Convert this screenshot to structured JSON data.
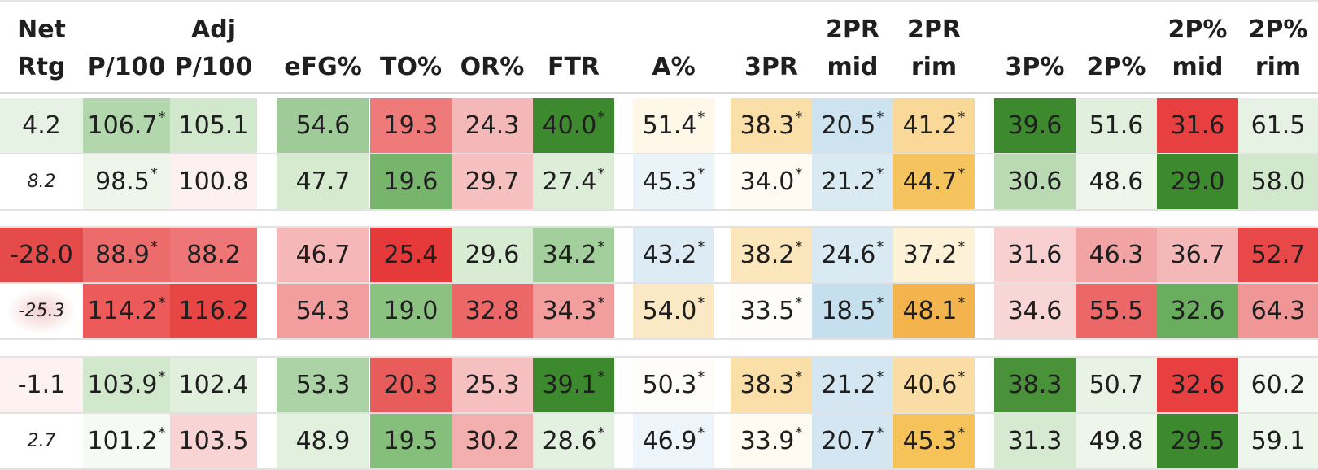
{
  "headers": [
    {
      "key": "net_rtg",
      "line1": "Net",
      "line2": "Rtg"
    },
    {
      "key": "p100",
      "line1": "",
      "line2": "P/100"
    },
    {
      "key": "adj_p100",
      "line1": "Adj",
      "line2": "P/100"
    },
    {
      "key": "efg",
      "line1": "",
      "line2": "eFG%"
    },
    {
      "key": "to",
      "line1": "",
      "line2": "TO%"
    },
    {
      "key": "or",
      "line1": "",
      "line2": "OR%"
    },
    {
      "key": "ftr",
      "line1": "",
      "line2": "FTR"
    },
    {
      "key": "a",
      "line1": "",
      "line2": "A%"
    },
    {
      "key": "3pr",
      "line1": "",
      "line2": "3PR"
    },
    {
      "key": "2pr_mid",
      "line1": "2PR",
      "line2": "mid"
    },
    {
      "key": "2pr_rim",
      "line1": "2PR",
      "line2": "rim"
    },
    {
      "key": "3p",
      "line1": "",
      "line2": "3P%"
    },
    {
      "key": "2p",
      "line1": "",
      "line2": "2P%"
    },
    {
      "key": "2p_mid",
      "line1": "2P%",
      "line2": "mid"
    },
    {
      "key": "2p_rim",
      "line1": "2P%",
      "line2": "rim"
    }
  ],
  "rows": [
    {
      "cells": [
        {
          "v": "4.2",
          "bg": "#e6f2e4"
        },
        {
          "v": "106.7",
          "star": "*",
          "bg": "#b3d7ad"
        },
        {
          "v": "105.1",
          "bg": "#d1e8cc"
        },
        {
          "v": "54.6",
          "bg": "#9ecb97"
        },
        {
          "v": "19.3",
          "bg": "#ee7b79"
        },
        {
          "v": "24.3",
          "bg": "#f5b8b8"
        },
        {
          "v": "40.0",
          "star": "*",
          "bg": "#3d8a2e"
        },
        {
          "v": "51.4",
          "star": "*",
          "bg": "#fff7e8"
        },
        {
          "v": "38.3",
          "star": "*",
          "bg": "#fbdfa9"
        },
        {
          "v": "20.5",
          "star": "*",
          "bg": "#cde3ef"
        },
        {
          "v": "41.2",
          "star": "*",
          "bg": "#f9d898"
        },
        {
          "v": "39.6",
          "bg": "#3d8a2e"
        },
        {
          "v": "51.6",
          "bg": "#e0f0dc"
        },
        {
          "v": "31.6",
          "bg": "#e84040"
        },
        {
          "v": "61.5",
          "bg": "#e6f2e4"
        }
      ]
    },
    {
      "cells": [
        {
          "v": "8.2",
          "small": true,
          "bg": "#ffffff"
        },
        {
          "v": "98.5",
          "star": "*",
          "bg": "#eef6ec"
        },
        {
          "v": "100.8",
          "bg": "#fdf0f0"
        },
        {
          "v": "47.7",
          "bg": "#d5eacf"
        },
        {
          "v": "19.6",
          "bg": "#77b46c"
        },
        {
          "v": "29.7",
          "bg": "#f6c0c0"
        },
        {
          "v": "27.4",
          "star": "*",
          "bg": "#dcedd8"
        },
        {
          "v": "45.3",
          "star": "*",
          "bg": "#e9f3f8"
        },
        {
          "v": "34.0",
          "star": "*",
          "bg": "#fffaf2"
        },
        {
          "v": "21.2",
          "star": "*",
          "bg": "#d9eaf3"
        },
        {
          "v": "44.7",
          "star": "*",
          "bg": "#f6c45e"
        },
        {
          "v": "30.6",
          "bg": "#b9daB3"
        },
        {
          "v": "48.6",
          "bg": "#eef6ec"
        },
        {
          "v": "29.0",
          "bg": "#3d8a2e"
        },
        {
          "v": "58.0",
          "bg": "#d1e8cc"
        }
      ]
    },
    {
      "cells": [
        {
          "v": "-28.0",
          "bg": "#e64b4b"
        },
        {
          "v": "88.9",
          "star": "*",
          "bg": "#ec6c6c"
        },
        {
          "v": "88.2",
          "bg": "#ee7676"
        },
        {
          "v": "46.7",
          "bg": "#f5b7b7"
        },
        {
          "v": "25.4",
          "bg": "#e63a3a"
        },
        {
          "v": "29.6",
          "bg": "#d8ecd3"
        },
        {
          "v": "34.2",
          "star": "*",
          "bg": "#a3cf9c"
        },
        {
          "v": "43.2",
          "star": "*",
          "bg": "#dcebf4"
        },
        {
          "v": "38.2",
          "star": "*",
          "bg": "#fce6bc"
        },
        {
          "v": "24.6",
          "star": "*",
          "bg": "#d9eaf3"
        },
        {
          "v": "37.2",
          "star": "*",
          "bg": "#fdf1d8"
        },
        {
          "v": "31.6",
          "bg": "#f8d0d0"
        },
        {
          "v": "46.3",
          "bg": "#f2a4a4"
        },
        {
          "v": "36.7",
          "bg": "#f5b8b8"
        },
        {
          "v": "52.7",
          "bg": "#e84848"
        }
      ]
    },
    {
      "cells": [
        {
          "v": "-25.3",
          "small": true,
          "bg": "glow"
        },
        {
          "v": "114.2",
          "star": "*",
          "bg": "#ec5a5a"
        },
        {
          "v": "116.2",
          "bg": "#e84545"
        },
        {
          "v": "54.3",
          "bg": "#f29e9e"
        },
        {
          "v": "19.0",
          "bg": "#8bc282"
        },
        {
          "v": "32.8",
          "bg": "#ec6868"
        },
        {
          "v": "34.3",
          "star": "*",
          "bg": "#f29e9e"
        },
        {
          "v": "54.0",
          "star": "*",
          "bg": "#fbe9c6"
        },
        {
          "v": "33.5",
          "star": "*",
          "bg": "#fffdf9"
        },
        {
          "v": "18.5",
          "star": "*",
          "bg": "#c5dfee"
        },
        {
          "v": "48.1",
          "star": "*",
          "bg": "#f3b34d"
        },
        {
          "v": "34.6",
          "bg": "#f9d6d6"
        },
        {
          "v": "55.5",
          "bg": "#ec6868"
        },
        {
          "v": "32.6",
          "bg": "#6aad5f"
        },
        {
          "v": "64.3",
          "bg": "#f09696"
        }
      ]
    },
    {
      "cells": [
        {
          "v": "-1.1",
          "bg": "#fdf1f1"
        },
        {
          "v": "103.9",
          "star": "*",
          "bg": "#d2e8cd"
        },
        {
          "v": "102.4",
          "bg": "#e1f0dd"
        },
        {
          "v": "53.3",
          "bg": "#acd3a5"
        },
        {
          "v": "20.3",
          "bg": "#e85c5c"
        },
        {
          "v": "25.3",
          "bg": "#f6c0c0"
        },
        {
          "v": "39.1",
          "star": "*",
          "bg": "#3d8a2e"
        },
        {
          "v": "50.3",
          "star": "*",
          "bg": "#fffdf9"
        },
        {
          "v": "38.3",
          "star": "*",
          "bg": "#fbdfa9"
        },
        {
          "v": "21.2",
          "star": "*",
          "bg": "#d3e6f1"
        },
        {
          "v": "40.6",
          "star": "*",
          "bg": "#fadda4"
        },
        {
          "v": "38.3",
          "bg": "#4a9239"
        },
        {
          "v": "50.7",
          "bg": "#e8f3e5"
        },
        {
          "v": "32.6",
          "bg": "#e84040"
        },
        {
          "v": "60.2",
          "bg": "#f4f9f3"
        }
      ]
    },
    {
      "cells": [
        {
          "v": "2.7",
          "small": true,
          "bg": "#ffffff"
        },
        {
          "v": "101.2",
          "star": "*",
          "bg": "#f5faf4"
        },
        {
          "v": "103.5",
          "bg": "#f9d4d4"
        },
        {
          "v": "48.9",
          "bg": "#e2f0de"
        },
        {
          "v": "19.5",
          "bg": "#86bf7c"
        },
        {
          "v": "30.2",
          "bg": "#f3aeae"
        },
        {
          "v": "28.6",
          "star": "*",
          "bg": "#e3f1e0"
        },
        {
          "v": "46.9",
          "star": "*",
          "bg": "#eef5fa"
        },
        {
          "v": "33.9",
          "star": "*",
          "bg": "#fffaf2"
        },
        {
          "v": "20.7",
          "star": "*",
          "bg": "#d3e6f1"
        },
        {
          "v": "45.3",
          "star": "*",
          "bg": "#f6c25a"
        },
        {
          "v": "31.3",
          "bg": "#d6ead1"
        },
        {
          "v": "49.8",
          "bg": "#eef6ec"
        },
        {
          "v": "29.5",
          "bg": "#3d8a2e"
        },
        {
          "v": "59.1",
          "bg": "#edf6eb"
        }
      ]
    }
  ]
}
